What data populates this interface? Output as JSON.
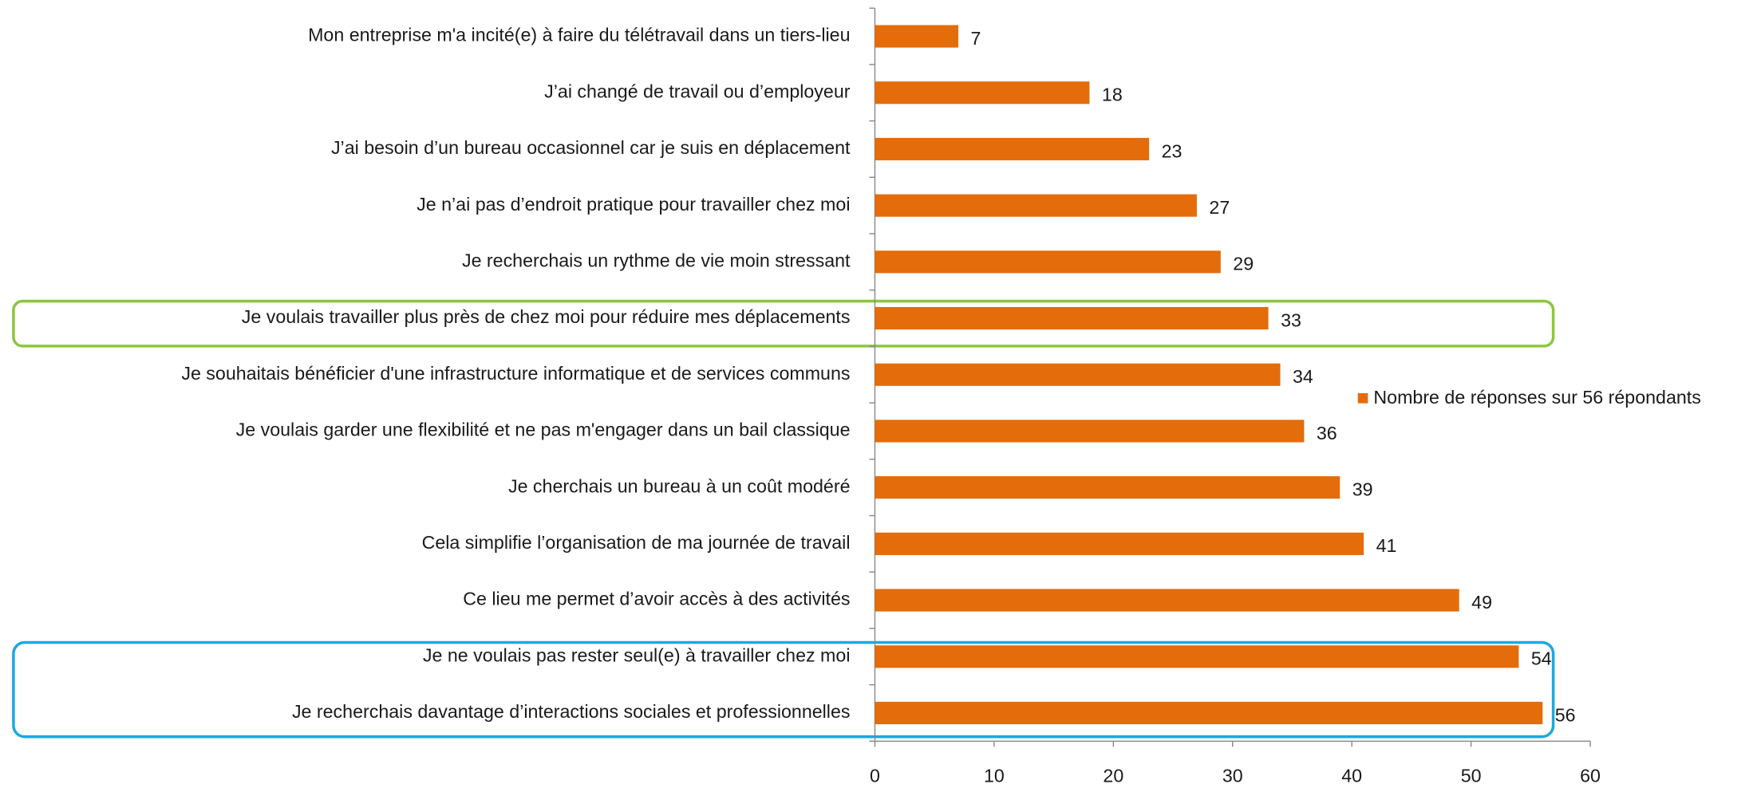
{
  "chart_data": {
    "type": "bar",
    "orientation": "horizontal",
    "categories": [
      "Mon entreprise m'a incité(e) à faire du télétravail dans un tiers-lieu",
      "J’ai changé de travail ou d’employeur",
      "J’ai besoin d’un bureau occasionnel car je suis en déplacement",
      "Je n’ai pas d’endroit pratique pour travailler chez moi",
      "Je recherchais un rythme de vie moin stressant",
      "Je voulais travailler plus près de chez moi pour réduire mes déplacements",
      "Je souhaitais bénéficier d'une infrastructure informatique et de services communs",
      "Je voulais garder une flexibilité et ne pas m'engager dans un bail classique",
      "Je cherchais un bureau à un coût modéré",
      "Cela simplifie l’organisation de ma journée de travail",
      "Ce lieu me permet d’avoir accès à des activités",
      "Je ne voulais pas rester seul(e) à travailler chez moi",
      "Je recherchais davantage d’interactions sociales et professionnelles"
    ],
    "series": [
      {
        "name": "Nombre de réponses sur 56 répondants",
        "color": "#e46c0a",
        "values": [
          7,
          18,
          23,
          27,
          29,
          33,
          34,
          36,
          39,
          41,
          49,
          54,
          56
        ]
      }
    ],
    "xlim": [
      0,
      60
    ],
    "xticks": [
      0,
      10,
      20,
      30,
      40,
      50,
      60
    ],
    "legend": "right"
  }
}
